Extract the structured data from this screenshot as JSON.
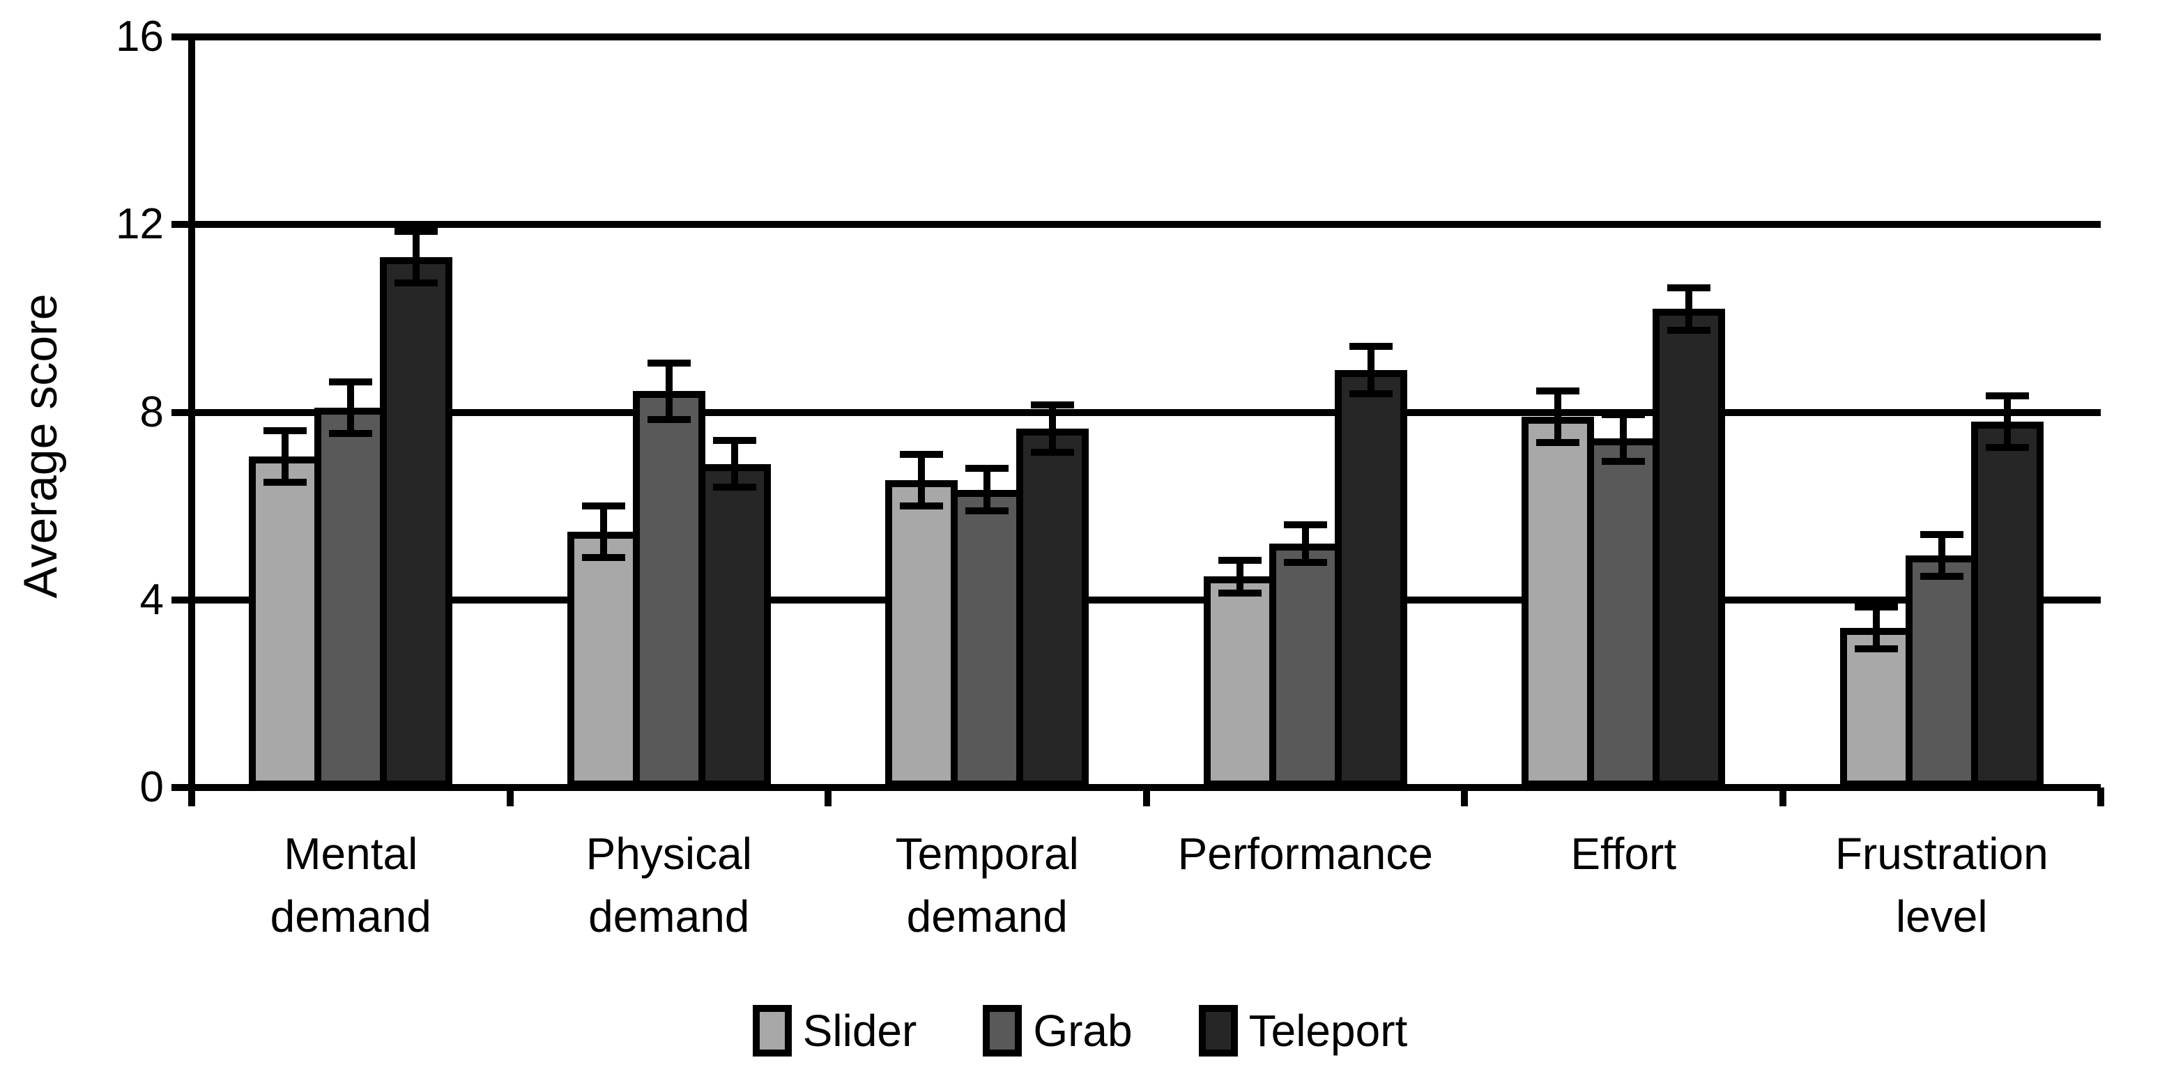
{
  "chart_data": {
    "type": "bar",
    "ylabel": "Average score",
    "ylim": [
      0,
      16
    ],
    "yticks": [
      0,
      4,
      8,
      12,
      16
    ],
    "grid": true,
    "legend_position": "bottom",
    "axis_color": "#000000",
    "categories": [
      "Mental demand",
      "Physical demand",
      "Temporal demand",
      "Performance",
      "Effort",
      "Frustration level"
    ],
    "category_lines": [
      [
        "Mental",
        "demand"
      ],
      [
        "Physical",
        "demand"
      ],
      [
        "Temporal",
        "demand"
      ],
      [
        "Performance"
      ],
      [
        "Effort"
      ],
      [
        "Frustration",
        "level"
      ]
    ],
    "series": [
      {
        "name": "Slider",
        "color": "#a8a8a8",
        "values": [
          7.05,
          5.45,
          6.55,
          4.5,
          7.9,
          3.4
        ],
        "errors": [
          0.55,
          0.55,
          0.55,
          0.35,
          0.55,
          0.45
        ]
      },
      {
        "name": "Grab",
        "color": "#595959",
        "values": [
          8.1,
          8.45,
          6.35,
          5.2,
          7.45,
          4.95
        ],
        "errors": [
          0.55,
          0.6,
          0.45,
          0.4,
          0.5,
          0.45
        ]
      },
      {
        "name": "Teleport",
        "color": "#262626",
        "values": [
          11.3,
          6.9,
          7.65,
          8.9,
          10.2,
          7.8
        ],
        "errors": [
          0.55,
          0.5,
          0.5,
          0.5,
          0.45,
          0.55
        ]
      }
    ]
  }
}
